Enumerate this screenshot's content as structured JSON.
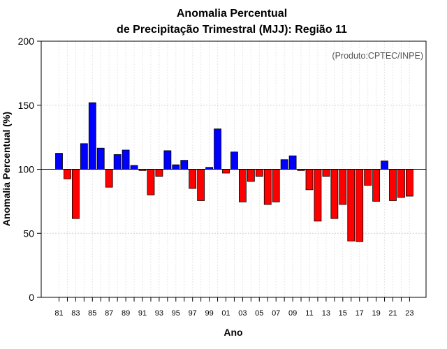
{
  "chart_data": {
    "type": "bar",
    "title": "Anomalia Percentual",
    "subtitle": "de Precipitação Trimestral (MJJ): Região 11",
    "xlabel": "Ano",
    "ylabel": "Anomalia Percentual (%)",
    "annotation": "(Produto:CPTEC/INPE)",
    "ylim": [
      0,
      200
    ],
    "yticks": [
      0,
      50,
      100,
      150,
      200
    ],
    "baseline": 100,
    "grid": true,
    "colors": {
      "above": "#0000ff",
      "below": "#ff0000",
      "edge": "#000000",
      "grid": "#d3d3d3",
      "baseline": "#000000"
    },
    "categories": [
      "81",
      "82",
      "83",
      "84",
      "85",
      "86",
      "87",
      "88",
      "89",
      "90",
      "91",
      "92",
      "93",
      "94",
      "95",
      "96",
      "97",
      "98",
      "99",
      "00",
      "01",
      "02",
      "03",
      "04",
      "05",
      "06",
      "07",
      "08",
      "09",
      "10",
      "11",
      "12",
      "13",
      "14",
      "15",
      "16",
      "17",
      "18",
      "19",
      "20",
      "21",
      "22",
      "23"
    ],
    "tick_labels": [
      "81",
      "83",
      "85",
      "87",
      "89",
      "91",
      "93",
      "95",
      "97",
      "99",
      "01",
      "03",
      "05",
      "07",
      "09",
      "11",
      "13",
      "15",
      "17",
      "19",
      "21",
      "23"
    ],
    "values": [
      112.5,
      92.5,
      61.5,
      120,
      152,
      116.5,
      86,
      111.5,
      115,
      103,
      99,
      80,
      94.5,
      114.5,
      103.5,
      107,
      85,
      75.5,
      101.5,
      131.5,
      97,
      113.5,
      74.5,
      90.5,
      94.5,
      72.5,
      74.5,
      107.5,
      110.5,
      99,
      84,
      59.5,
      94.5,
      61.5,
      72.5,
      44,
      43.5,
      87.5,
      75,
      106.5,
      75.5,
      78,
      79
    ]
  }
}
